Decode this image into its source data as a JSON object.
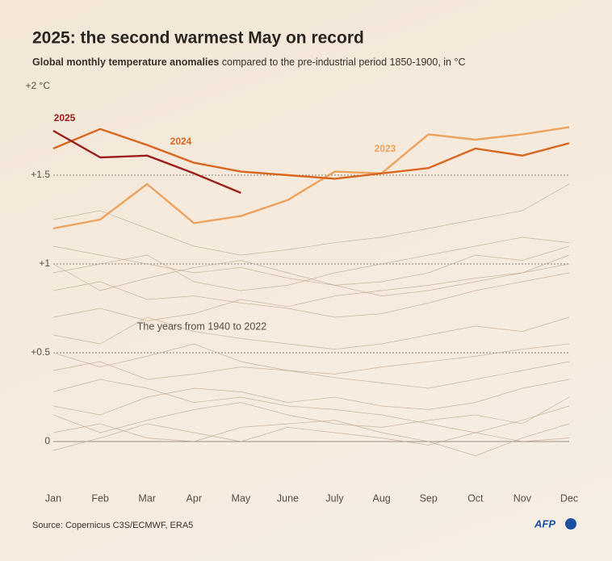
{
  "chart_data": {
    "type": "line",
    "title": "2025: the second warmest May on record",
    "subtitle_bold": "Global monthly temperature anomalies",
    "subtitle": "compared to the pre-industrial period 1850-1900, in °C",
    "categories": [
      "Jan",
      "Feb",
      "Mar",
      "Apr",
      "May",
      "June",
      "July",
      "Aug",
      "Sep",
      "Oct",
      "Nov",
      "Dec"
    ],
    "ylim": [
      -0.2,
      2
    ],
    "yticks": [
      0,
      {
        "value": 0.5,
        "label": "+0.5"
      },
      {
        "value": 1,
        "label": "+1"
      },
      {
        "value": 1.5,
        "label": "+1.5"
      },
      {
        "value": 2,
        "label": "+2 °C"
      }
    ],
    "grid": true,
    "series": [
      {
        "name": "2025",
        "color": "#9b1c1c",
        "values": [
          1.75,
          1.6,
          1.61,
          1.51,
          1.4,
          null,
          null,
          null,
          null,
          null,
          null,
          null
        ]
      },
      {
        "name": "2024",
        "color": "#d9661f",
        "values": [
          1.65,
          1.76,
          1.67,
          1.57,
          1.52,
          1.5,
          1.48,
          1.51,
          1.54,
          1.65,
          1.61,
          1.68
        ]
      },
      {
        "name": "2023",
        "color": "#eda35f",
        "values": [
          1.2,
          1.25,
          1.45,
          1.23,
          1.27,
          1.36,
          1.52,
          1.51,
          1.73,
          1.7,
          1.73,
          1.77
        ]
      }
    ],
    "annotation": "The years from 1940 to 2022",
    "background_series": [
      {
        "values": [
          0.28,
          0.35,
          0.3,
          0.22,
          0.25,
          0.2,
          0.18,
          0.15,
          0.1,
          0.05,
          0.12,
          0.2
        ]
      },
      {
        "values": [
          1.1,
          1.05,
          1.0,
          0.95,
          0.98,
          0.92,
          0.88,
          0.9,
          0.95,
          1.05,
          1.02,
          1.1
        ]
      },
      {
        "values": [
          0.05,
          0.1,
          0.02,
          0.0,
          0.08,
          0.1,
          0.12,
          0.05,
          0.0,
          -0.08,
          0.02,
          0.1
        ]
      },
      {
        "values": [
          0.6,
          0.55,
          0.7,
          0.62,
          0.58,
          0.55,
          0.52,
          0.55,
          0.6,
          0.65,
          0.62,
          0.7
        ]
      },
      {
        "values": [
          0.85,
          0.9,
          0.8,
          0.82,
          0.78,
          0.75,
          0.7,
          0.72,
          0.78,
          0.85,
          0.9,
          0.95
        ]
      },
      {
        "values": [
          0.4,
          0.45,
          0.35,
          0.38,
          0.42,
          0.4,
          0.36,
          0.33,
          0.3,
          0.35,
          0.4,
          0.45
        ]
      },
      {
        "values": [
          -0.05,
          0.02,
          0.1,
          0.05,
          0.0,
          0.08,
          0.05,
          0.02,
          -0.02,
          0.05,
          0.0,
          0.02
        ]
      },
      {
        "values": [
          1.25,
          1.3,
          1.2,
          1.1,
          1.05,
          1.08,
          1.12,
          1.15,
          1.2,
          1.25,
          1.3,
          1.45
        ]
      },
      {
        "values": [
          0.2,
          0.15,
          0.25,
          0.3,
          0.28,
          0.22,
          0.25,
          0.2,
          0.18,
          0.22,
          0.3,
          0.35
        ]
      },
      {
        "values": [
          0.7,
          0.75,
          0.68,
          0.72,
          0.8,
          0.76,
          0.82,
          0.85,
          0.88,
          0.92,
          0.95,
          1.0
        ]
      },
      {
        "values": [
          0.5,
          0.42,
          0.48,
          0.55,
          0.45,
          0.4,
          0.38,
          0.42,
          0.45,
          0.48,
          0.52,
          0.55
        ]
      },
      {
        "values": [
          0.95,
          1.0,
          1.05,
          0.9,
          0.85,
          0.88,
          0.95,
          1.0,
          1.05,
          1.1,
          1.15,
          1.12
        ]
      },
      {
        "values": [
          0.15,
          0.05,
          0.12,
          0.18,
          0.22,
          0.15,
          0.1,
          0.08,
          0.12,
          0.15,
          0.1,
          0.25
        ]
      },
      {
        "values": [
          1.0,
          0.85,
          0.92,
          0.98,
          1.02,
          0.95,
          0.88,
          0.82,
          0.85,
          0.9,
          0.95,
          1.05
        ]
      }
    ],
    "source": "Source: Copernicus C3S/ECMWF, ERA5",
    "logo": "AFP"
  }
}
